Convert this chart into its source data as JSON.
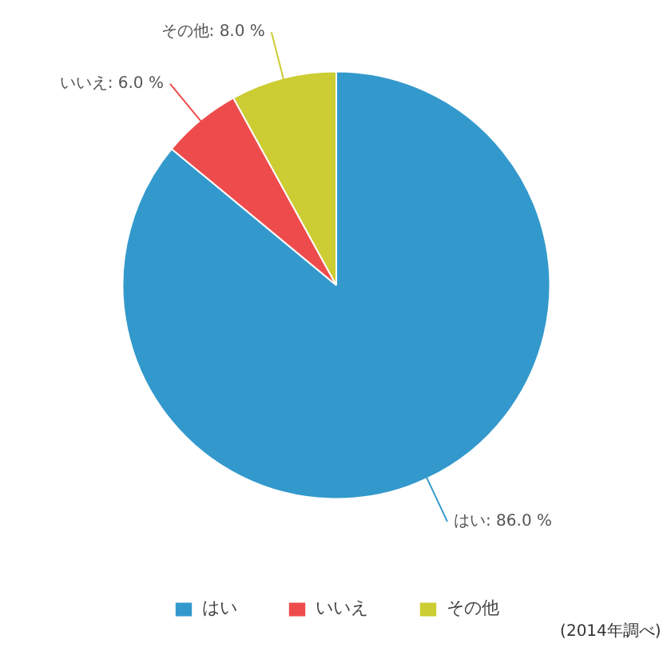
{
  "chart_data": {
    "type": "pie",
    "categories": [
      "はい",
      "いいえ",
      "その他"
    ],
    "values": [
      86.0,
      6.0,
      8.0
    ],
    "colors": [
      "#3399cc",
      "#ee4c4c",
      "#cccc33"
    ],
    "value_labels": [
      "はい: 86.0 %",
      "いいえ: 6.0 %",
      "その他: 8.0 %"
    ],
    "legend": "bottom",
    "annotations": [
      "(2014年調べ)"
    ]
  }
}
